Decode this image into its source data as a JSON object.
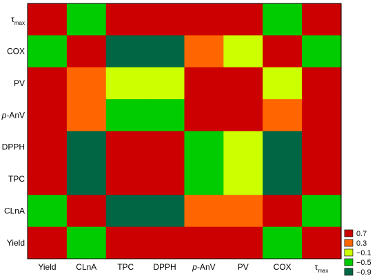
{
  "chart_data": {
    "type": "heatmap",
    "title": "",
    "xlabel": "",
    "ylabel": "",
    "x_categories": [
      {
        "label": "Yield"
      },
      {
        "label": "CLnA"
      },
      {
        "label": "TPC"
      },
      {
        "label": "DPPH"
      },
      {
        "label": "p-AnV",
        "italic_prefix": "p",
        "rest": "-AnV"
      },
      {
        "label": "PV"
      },
      {
        "label": "COX"
      },
      {
        "label": "τmax",
        "main": "τ",
        "sub": "max"
      }
    ],
    "y_categories": [
      {
        "label": "τmax",
        "main": "τ",
        "sub": "max"
      },
      {
        "label": "COX"
      },
      {
        "label": "PV"
      },
      {
        "label": "p-AnV",
        "italic_prefix": "p",
        "rest": "-AnV"
      },
      {
        "label": "DPPH"
      },
      {
        "label": "TPC"
      },
      {
        "label": "CLnA"
      },
      {
        "label": "Yield"
      }
    ],
    "values": [
      [
        0.9,
        -0.5,
        0.75,
        0.8,
        0.8,
        0.75,
        -0.5,
        0.9
      ],
      [
        -0.5,
        0.9,
        -0.9,
        -0.9,
        0.3,
        0.1,
        0.9,
        -0.5
      ],
      [
        0.8,
        0.35,
        -0.1,
        -0.1,
        0.9,
        0.9,
        0.15,
        0.8
      ],
      [
        0.75,
        0.3,
        -0.4,
        -0.4,
        0.9,
        0.9,
        0.3,
        0.75
      ],
      [
        0.8,
        -0.9,
        0.9,
        0.9,
        -0.4,
        -0.1,
        -0.9,
        0.8
      ],
      [
        0.8,
        -0.9,
        0.9,
        0.9,
        -0.4,
        -0.1,
        -0.9,
        0.8
      ],
      [
        -0.5,
        0.9,
        -0.9,
        -0.9,
        0.3,
        0.35,
        0.9,
        -0.5
      ],
      [
        0.9,
        -0.5,
        0.8,
        0.8,
        0.75,
        0.8,
        -0.5,
        0.9
      ]
    ],
    "color_scale": [
      {
        "level": "0.7",
        "min": 0.7,
        "color": "#cc0000"
      },
      {
        "level": "0.3",
        "min": 0.3,
        "color": "#ff6600"
      },
      {
        "level": "-0.1",
        "min": -0.1,
        "color": "#ccff00"
      },
      {
        "level": "-0.5",
        "min": -0.5,
        "color": "#00cc00"
      },
      {
        "level": "-0.9",
        "min": -1.0,
        "color": "#006644"
      }
    ],
    "legend": [
      {
        "label": "0.7",
        "color": "#cc0000"
      },
      {
        "label": "0.3",
        "color": "#ff6600"
      },
      {
        "label": "−0.1",
        "color": "#ccff00"
      },
      {
        "label": "−0.5",
        "color": "#00cc00"
      },
      {
        "label": "−0.9",
        "color": "#006644"
      }
    ],
    "legend_position": "bottom-right",
    "grid": false
  }
}
